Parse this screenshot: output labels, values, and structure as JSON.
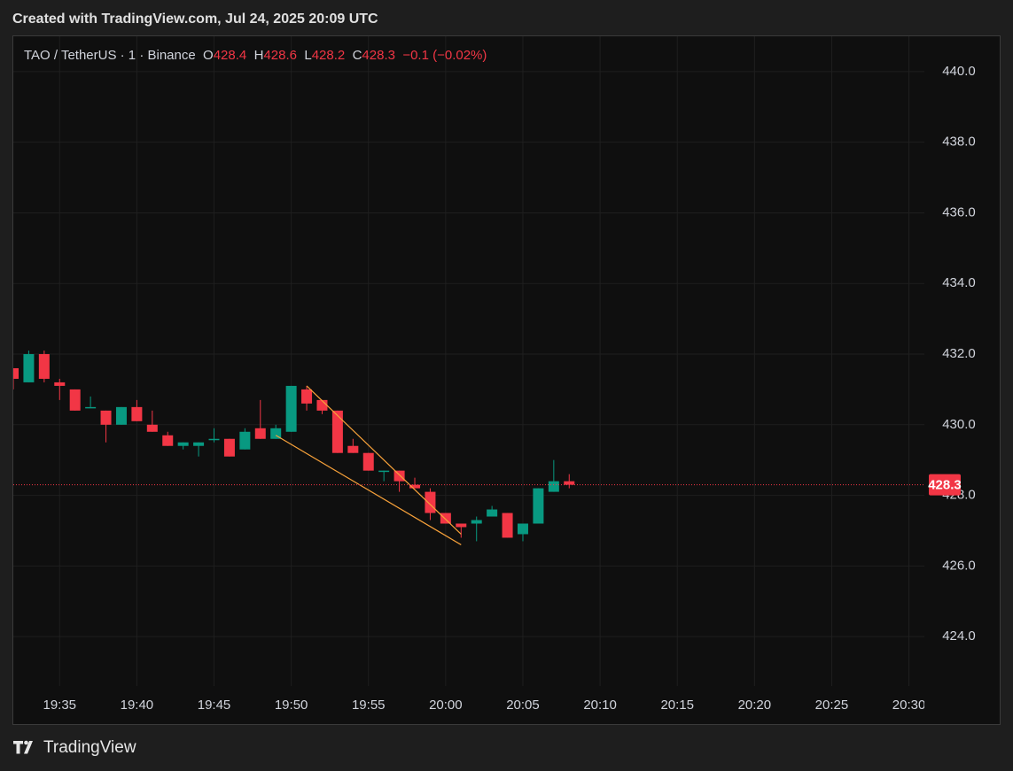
{
  "chart_data": {
    "type": "candlestick",
    "title": "Created with TradingView.com, Jul 24, 2025 20:09 UTC",
    "brand": "TradingView",
    "legend": {
      "symbol": "TAO / TetherUS · 1 · Binance",
      "open_label": "O",
      "open": 428.4,
      "high_label": "H",
      "high": 428.6,
      "low_label": "L",
      "low": 428.2,
      "close_label": "C",
      "close": 428.3,
      "change": "−0.1 (−0.02%)"
    },
    "up_color": "#089981",
    "down_color": "#f23645",
    "x": [
      "19:32",
      "19:33",
      "19:34",
      "19:35",
      "19:36",
      "19:37",
      "19:38",
      "19:39",
      "19:40",
      "19:41",
      "19:42",
      "19:43",
      "19:44",
      "19:45",
      "19:46",
      "19:47",
      "19:48",
      "19:49",
      "19:50",
      "19:51",
      "19:52",
      "19:53",
      "19:54",
      "19:55",
      "19:56",
      "19:57",
      "19:58",
      "19:59",
      "20:00",
      "20:01",
      "20:02",
      "20:03",
      "20:04",
      "20:05",
      "20:06",
      "20:07",
      "20:08"
    ],
    "open": [
      431.6,
      431.2,
      432.0,
      431.2,
      431.0,
      430.5,
      430.4,
      430.0,
      430.5,
      430.0,
      429.7,
      429.4,
      429.4,
      429.6,
      429.6,
      429.3,
      429.9,
      429.6,
      429.8,
      431.0,
      430.7,
      430.4,
      429.4,
      429.2,
      428.7,
      428.7,
      428.3,
      428.1,
      427.5,
      427.2,
      427.2,
      427.4,
      427.5,
      426.9,
      427.2,
      428.1,
      428.4
    ],
    "high": [
      431.6,
      432.1,
      432.1,
      431.3,
      431.0,
      430.8,
      430.4,
      430.5,
      430.7,
      430.4,
      429.8,
      429.5,
      429.5,
      429.9,
      429.6,
      429.9,
      430.7,
      430.0,
      431.1,
      431.1,
      430.7,
      430.4,
      429.6,
      429.2,
      428.7,
      428.7,
      428.5,
      428.2,
      427.5,
      427.2,
      427.4,
      427.7,
      427.5,
      427.2,
      428.2,
      429.0,
      428.6
    ],
    "low": [
      431.0,
      431.2,
      431.2,
      430.7,
      430.4,
      430.5,
      429.5,
      430.0,
      430.1,
      429.8,
      429.4,
      429.3,
      429.1,
      429.5,
      429.1,
      429.3,
      429.6,
      429.6,
      429.8,
      430.4,
      430.3,
      429.2,
      429.2,
      428.7,
      428.4,
      428.1,
      428.2,
      427.3,
      427.2,
      426.8,
      426.7,
      427.4,
      426.8,
      426.7,
      427.2,
      428.1,
      428.2
    ],
    "close": [
      431.3,
      432.0,
      431.3,
      431.1,
      430.4,
      430.5,
      430.0,
      430.5,
      430.1,
      429.8,
      429.4,
      429.5,
      429.5,
      429.6,
      429.1,
      429.8,
      429.6,
      429.9,
      431.1,
      430.6,
      430.4,
      429.2,
      429.2,
      428.7,
      428.7,
      428.4,
      428.2,
      427.5,
      427.2,
      427.1,
      427.3,
      427.6,
      426.8,
      427.2,
      428.2,
      428.4,
      428.3
    ],
    "last_price": 428.3,
    "trendlines": [
      {
        "color": "#f7a13a",
        "x": [
          "19:51",
          "20:01"
        ],
        "y": [
          431.1,
          426.9
        ]
      },
      {
        "color": "#f7a13a",
        "x": [
          "19:49",
          "20:01"
        ],
        "y": [
          429.7,
          426.6
        ]
      }
    ],
    "xlim": [
      "19:32",
      "20:31"
    ],
    "xticks": [
      "19:35",
      "19:40",
      "19:45",
      "19:50",
      "19:55",
      "20:00",
      "20:05",
      "20:10",
      "20:15",
      "20:20",
      "20:25",
      "20:30"
    ],
    "ylim": [
      422.6,
      441.0
    ],
    "yticks": [
      {
        "value": 424,
        "label": "424.0"
      },
      {
        "value": 426,
        "label": "426.0"
      },
      {
        "value": 428,
        "label": "428.0"
      },
      {
        "value": 430,
        "label": "430.0"
      },
      {
        "value": 432,
        "label": "432.0"
      },
      {
        "value": 434,
        "label": "434.0"
      },
      {
        "value": 436,
        "label": "436.0"
      },
      {
        "value": 438,
        "label": "438.0"
      },
      {
        "value": 440,
        "label": "440.0"
      }
    ],
    "grid": true
  }
}
